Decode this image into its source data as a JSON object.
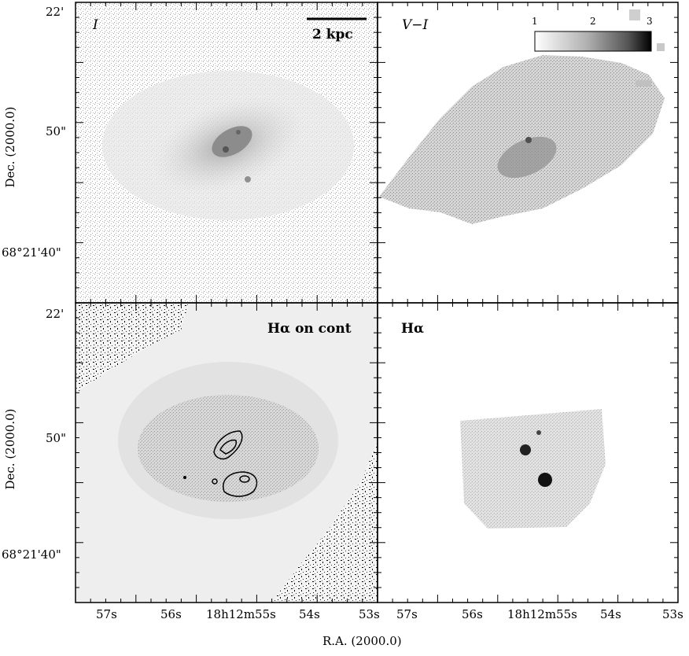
{
  "figure": {
    "x_axis_title": "R.A. (2000.0)",
    "y_axis_title": "Dec. (2000.0)",
    "ra_ticks": [
      "57s",
      "56s",
      "18h12m55s",
      "54s",
      "53s"
    ],
    "dec_ticks": [
      "22'",
      "50\"",
      "68°21'40\""
    ],
    "panels": [
      {
        "id": "I",
        "label": "I"
      },
      {
        "id": "V-I",
        "label": "V−I"
      },
      {
        "id": "Ha-on-cont",
        "label": "Hα on cont"
      },
      {
        "id": "Ha",
        "label": "Hα"
      }
    ],
    "scale_bar": {
      "label": "2 kpc"
    },
    "colorbar": {
      "ticks": [
        "1",
        "2",
        "3"
      ]
    }
  }
}
